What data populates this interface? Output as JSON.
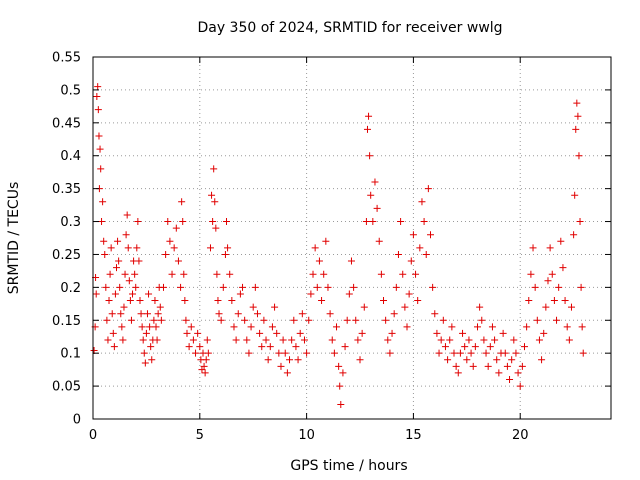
{
  "chart_data": {
    "type": "scatter",
    "title": "Day 350 of 2024, SRMTID for receiver wwlg",
    "xlabel": "GPS time / hours",
    "ylabel": "SRMTID / TECUs",
    "xlim": [
      0,
      24.25
    ],
    "ylim": [
      0,
      0.55
    ],
    "xticks": [
      0,
      5,
      10,
      15,
      20
    ],
    "xtick_labels": [
      "0",
      "5",
      "10",
      "15",
      "20"
    ],
    "yticks": [
      0,
      0.05,
      0.1,
      0.15,
      0.2,
      0.25,
      0.3,
      0.35,
      0.4,
      0.45,
      0.5,
      0.55
    ],
    "ytick_labels": [
      "0",
      "0.05",
      "0.1",
      "0.15",
      "0.2",
      "0.25",
      "0.3",
      "0.35",
      "0.4",
      "0.45",
      "0.5",
      "0.55"
    ],
    "grid": true,
    "marker": "+",
    "marker_color": "#e00000",
    "series": [
      {
        "name": "SRMTID",
        "note": "approximate envelope of the dense point cloud, digitized as [hour, TECU] pairs",
        "points": [
          [
            0.05,
            0.104
          ],
          [
            0.1,
            0.14
          ],
          [
            0.12,
            0.215
          ],
          [
            0.15,
            0.19
          ],
          [
            0.18,
            0.49
          ],
          [
            0.22,
            0.505
          ],
          [
            0.25,
            0.47
          ],
          [
            0.28,
            0.43
          ],
          [
            0.3,
            0.35
          ],
          [
            0.33,
            0.41
          ],
          [
            0.36,
            0.38
          ],
          [
            0.4,
            0.3
          ],
          [
            0.45,
            0.33
          ],
          [
            0.5,
            0.27
          ],
          [
            0.55,
            0.25
          ],
          [
            0.6,
            0.2
          ],
          [
            0.65,
            0.15
          ],
          [
            0.7,
            0.12
          ],
          [
            0.75,
            0.18
          ],
          [
            0.8,
            0.22
          ],
          [
            0.85,
            0.26
          ],
          [
            0.9,
            0.16
          ],
          [
            0.95,
            0.13
          ],
          [
            1.0,
            0.11
          ],
          [
            1.05,
            0.19
          ],
          [
            1.1,
            0.23
          ],
          [
            1.15,
            0.27
          ],
          [
            1.2,
            0.24
          ],
          [
            1.25,
            0.2
          ],
          [
            1.3,
            0.16
          ],
          [
            1.35,
            0.14
          ],
          [
            1.4,
            0.12
          ],
          [
            1.45,
            0.17
          ],
          [
            1.5,
            0.22
          ],
          [
            1.55,
            0.28
          ],
          [
            1.6,
            0.31
          ],
          [
            1.65,
            0.26
          ],
          [
            1.7,
            0.21
          ],
          [
            1.75,
            0.18
          ],
          [
            1.8,
            0.15
          ],
          [
            1.85,
            0.19
          ],
          [
            1.9,
            0.24
          ],
          [
            1.95,
            0.22
          ],
          [
            2.0,
            0.2
          ],
          [
            2.05,
            0.26
          ],
          [
            2.1,
            0.3
          ],
          [
            2.15,
            0.24
          ],
          [
            2.2,
            0.18
          ],
          [
            2.25,
            0.16
          ],
          [
            2.3,
            0.14
          ],
          [
            2.35,
            0.12
          ],
          [
            2.4,
            0.1
          ],
          [
            2.45,
            0.085
          ],
          [
            2.5,
            0.13
          ],
          [
            2.55,
            0.16
          ],
          [
            2.6,
            0.19
          ],
          [
            2.65,
            0.14
          ],
          [
            2.7,
            0.11
          ],
          [
            2.75,
            0.09
          ],
          [
            2.8,
            0.12
          ],
          [
            2.85,
            0.15
          ],
          [
            2.9,
            0.18
          ],
          [
            2.95,
            0.14
          ],
          [
            3.0,
            0.12
          ],
          [
            3.05,
            0.16
          ],
          [
            3.1,
            0.2
          ],
          [
            3.15,
            0.17
          ],
          [
            3.2,
            0.15
          ],
          [
            3.3,
            0.2
          ],
          [
            3.4,
            0.25
          ],
          [
            3.5,
            0.3
          ],
          [
            3.6,
            0.27
          ],
          [
            3.7,
            0.22
          ],
          [
            3.8,
            0.26
          ],
          [
            3.9,
            0.29
          ],
          [
            4.0,
            0.24
          ],
          [
            4.1,
            0.2
          ],
          [
            4.15,
            0.33
          ],
          [
            4.2,
            0.3
          ],
          [
            4.25,
            0.22
          ],
          [
            4.3,
            0.18
          ],
          [
            4.35,
            0.15
          ],
          [
            4.4,
            0.13
          ],
          [
            4.5,
            0.11
          ],
          [
            4.6,
            0.14
          ],
          [
            4.7,
            0.12
          ],
          [
            4.8,
            0.1
          ],
          [
            4.9,
            0.13
          ],
          [
            5.0,
            0.11
          ],
          [
            5.05,
            0.09
          ],
          [
            5.1,
            0.075
          ],
          [
            5.15,
            0.1
          ],
          [
            5.2,
            0.08
          ],
          [
            5.25,
            0.07
          ],
          [
            5.3,
            0.09
          ],
          [
            5.35,
            0.12
          ],
          [
            5.4,
            0.1
          ],
          [
            5.5,
            0.26
          ],
          [
            5.55,
            0.34
          ],
          [
            5.6,
            0.3
          ],
          [
            5.65,
            0.38
          ],
          [
            5.7,
            0.33
          ],
          [
            5.75,
            0.29
          ],
          [
            5.8,
            0.22
          ],
          [
            5.85,
            0.18
          ],
          [
            5.9,
            0.16
          ],
          [
            6.0,
            0.15
          ],
          [
            6.1,
            0.2
          ],
          [
            6.2,
            0.25
          ],
          [
            6.25,
            0.3
          ],
          [
            6.3,
            0.26
          ],
          [
            6.4,
            0.22
          ],
          [
            6.5,
            0.18
          ],
          [
            6.6,
            0.14
          ],
          [
            6.7,
            0.12
          ],
          [
            6.8,
            0.16
          ],
          [
            6.9,
            0.19
          ],
          [
            7.0,
            0.2
          ],
          [
            7.1,
            0.15
          ],
          [
            7.2,
            0.12
          ],
          [
            7.3,
            0.1
          ],
          [
            7.4,
            0.14
          ],
          [
            7.5,
            0.17
          ],
          [
            7.6,
            0.2
          ],
          [
            7.7,
            0.16
          ],
          [
            7.8,
            0.13
          ],
          [
            7.9,
            0.11
          ],
          [
            8.0,
            0.15
          ],
          [
            8.1,
            0.12
          ],
          [
            8.2,
            0.09
          ],
          [
            8.3,
            0.11
          ],
          [
            8.4,
            0.14
          ],
          [
            8.5,
            0.17
          ],
          [
            8.6,
            0.13
          ],
          [
            8.7,
            0.1
          ],
          [
            8.8,
            0.08
          ],
          [
            8.9,
            0.12
          ],
          [
            9.0,
            0.1
          ],
          [
            9.1,
            0.07
          ],
          [
            9.2,
            0.09
          ],
          [
            9.3,
            0.12
          ],
          [
            9.4,
            0.15
          ],
          [
            9.5,
            0.11
          ],
          [
            9.6,
            0.09
          ],
          [
            9.7,
            0.13
          ],
          [
            9.8,
            0.16
          ],
          [
            9.9,
            0.12
          ],
          [
            10.0,
            0.1
          ],
          [
            10.1,
            0.15
          ],
          [
            10.2,
            0.19
          ],
          [
            10.3,
            0.22
          ],
          [
            10.4,
            0.26
          ],
          [
            10.5,
            0.2
          ],
          [
            10.6,
            0.24
          ],
          [
            10.7,
            0.18
          ],
          [
            10.8,
            0.22
          ],
          [
            10.9,
            0.27
          ],
          [
            11.0,
            0.2
          ],
          [
            11.1,
            0.16
          ],
          [
            11.2,
            0.12
          ],
          [
            11.3,
            0.1
          ],
          [
            11.4,
            0.14
          ],
          [
            11.5,
            0.08
          ],
          [
            11.55,
            0.05
          ],
          [
            11.6,
            0.022
          ],
          [
            11.7,
            0.07
          ],
          [
            11.8,
            0.11
          ],
          [
            11.9,
            0.15
          ],
          [
            12.0,
            0.19
          ],
          [
            12.1,
            0.24
          ],
          [
            12.2,
            0.2
          ],
          [
            12.3,
            0.15
          ],
          [
            12.4,
            0.12
          ],
          [
            12.5,
            0.09
          ],
          [
            12.6,
            0.13
          ],
          [
            12.7,
            0.17
          ],
          [
            12.8,
            0.3
          ],
          [
            12.85,
            0.44
          ],
          [
            12.9,
            0.46
          ],
          [
            12.95,
            0.4
          ],
          [
            13.0,
            0.34
          ],
          [
            13.1,
            0.3
          ],
          [
            13.2,
            0.36
          ],
          [
            13.3,
            0.32
          ],
          [
            13.4,
            0.27
          ],
          [
            13.5,
            0.22
          ],
          [
            13.6,
            0.18
          ],
          [
            13.7,
            0.15
          ],
          [
            13.8,
            0.12
          ],
          [
            13.9,
            0.1
          ],
          [
            14.0,
            0.13
          ],
          [
            14.1,
            0.16
          ],
          [
            14.2,
            0.2
          ],
          [
            14.3,
            0.25
          ],
          [
            14.4,
            0.3
          ],
          [
            14.5,
            0.22
          ],
          [
            14.6,
            0.17
          ],
          [
            14.7,
            0.14
          ],
          [
            14.8,
            0.19
          ],
          [
            14.9,
            0.24
          ],
          [
            15.0,
            0.28
          ],
          [
            15.1,
            0.22
          ],
          [
            15.2,
            0.18
          ],
          [
            15.3,
            0.26
          ],
          [
            15.4,
            0.33
          ],
          [
            15.5,
            0.3
          ],
          [
            15.6,
            0.25
          ],
          [
            15.7,
            0.35
          ],
          [
            15.8,
            0.28
          ],
          [
            15.9,
            0.2
          ],
          [
            16.0,
            0.16
          ],
          [
            16.1,
            0.13
          ],
          [
            16.2,
            0.1
          ],
          [
            16.3,
            0.12
          ],
          [
            16.4,
            0.15
          ],
          [
            16.5,
            0.11
          ],
          [
            16.6,
            0.09
          ],
          [
            16.7,
            0.12
          ],
          [
            16.8,
            0.14
          ],
          [
            16.9,
            0.1
          ],
          [
            17.0,
            0.08
          ],
          [
            17.1,
            0.07
          ],
          [
            17.2,
            0.1
          ],
          [
            17.3,
            0.13
          ],
          [
            17.4,
            0.11
          ],
          [
            17.5,
            0.09
          ],
          [
            17.6,
            0.12
          ],
          [
            17.7,
            0.1
          ],
          [
            17.8,
            0.08
          ],
          [
            17.9,
            0.11
          ],
          [
            18.0,
            0.14
          ],
          [
            18.1,
            0.17
          ],
          [
            18.2,
            0.15
          ],
          [
            18.3,
            0.12
          ],
          [
            18.4,
            0.1
          ],
          [
            18.5,
            0.08
          ],
          [
            18.6,
            0.11
          ],
          [
            18.7,
            0.14
          ],
          [
            18.8,
            0.12
          ],
          [
            18.9,
            0.09
          ],
          [
            19.0,
            0.07
          ],
          [
            19.1,
            0.1
          ],
          [
            19.2,
            0.13
          ],
          [
            19.3,
            0.1
          ],
          [
            19.4,
            0.08
          ],
          [
            19.5,
            0.06
          ],
          [
            19.6,
            0.09
          ],
          [
            19.7,
            0.12
          ],
          [
            19.8,
            0.1
          ],
          [
            19.9,
            0.07
          ],
          [
            20.0,
            0.05
          ],
          [
            20.1,
            0.08
          ],
          [
            20.2,
            0.11
          ],
          [
            20.3,
            0.14
          ],
          [
            20.4,
            0.18
          ],
          [
            20.5,
            0.22
          ],
          [
            20.6,
            0.26
          ],
          [
            20.7,
            0.2
          ],
          [
            20.8,
            0.15
          ],
          [
            20.9,
            0.12
          ],
          [
            21.0,
            0.09
          ],
          [
            21.1,
            0.13
          ],
          [
            21.2,
            0.17
          ],
          [
            21.3,
            0.21
          ],
          [
            21.4,
            0.26
          ],
          [
            21.5,
            0.22
          ],
          [
            21.6,
            0.18
          ],
          [
            21.7,
            0.15
          ],
          [
            21.8,
            0.2
          ],
          [
            21.9,
            0.27
          ],
          [
            22.0,
            0.23
          ],
          [
            22.1,
            0.18
          ],
          [
            22.2,
            0.14
          ],
          [
            22.3,
            0.12
          ],
          [
            22.4,
            0.17
          ],
          [
            22.5,
            0.28
          ],
          [
            22.55,
            0.34
          ],
          [
            22.6,
            0.44
          ],
          [
            22.65,
            0.48
          ],
          [
            22.7,
            0.46
          ],
          [
            22.75,
            0.4
          ],
          [
            22.8,
            0.3
          ],
          [
            22.85,
            0.2
          ],
          [
            22.9,
            0.14
          ],
          [
            22.95,
            0.1
          ]
        ]
      }
    ]
  }
}
